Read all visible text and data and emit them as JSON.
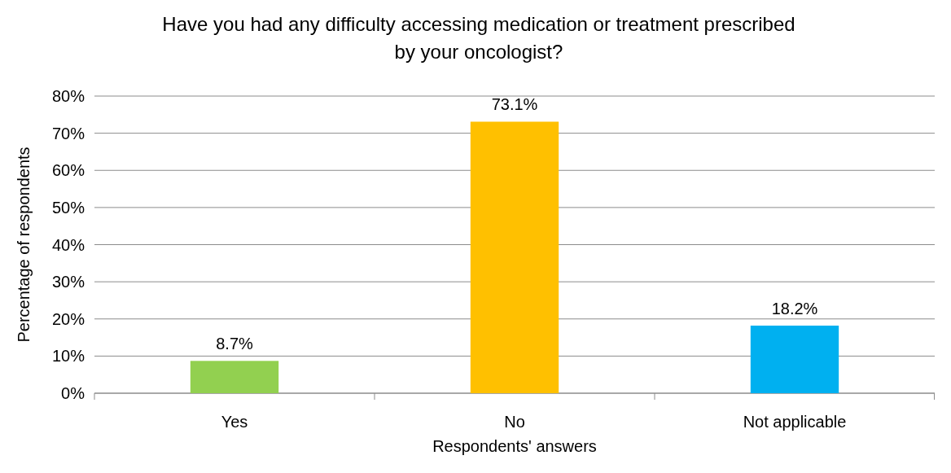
{
  "chart_data": {
    "type": "bar",
    "title": "Have you had any difficulty accessing medication or treatment prescribed by your oncologist?",
    "xlabel": "Respondents' answers",
    "ylabel": "Percentage of respondents",
    "categories": [
      "Yes",
      "No",
      "Not applicable"
    ],
    "values": [
      8.7,
      73.1,
      18.2
    ],
    "colors": [
      "#92d050",
      "#ffc000",
      "#00b0f0"
    ],
    "value_labels": [
      "8.7%",
      "73.1%",
      "18.2%"
    ],
    "ylim": [
      0,
      80
    ],
    "yticks": [
      {
        "value": 0,
        "label": "0%"
      },
      {
        "value": 10,
        "label": "10%"
      },
      {
        "value": 20,
        "label": "20%"
      },
      {
        "value": 30,
        "label": "30%"
      },
      {
        "value": 40,
        "label": "40%"
      },
      {
        "value": 50,
        "label": "50%"
      },
      {
        "value": 60,
        "label": "60%"
      },
      {
        "value": 70,
        "label": "70%"
      },
      {
        "value": 80,
        "label": "80%"
      }
    ],
    "grid": "y"
  }
}
